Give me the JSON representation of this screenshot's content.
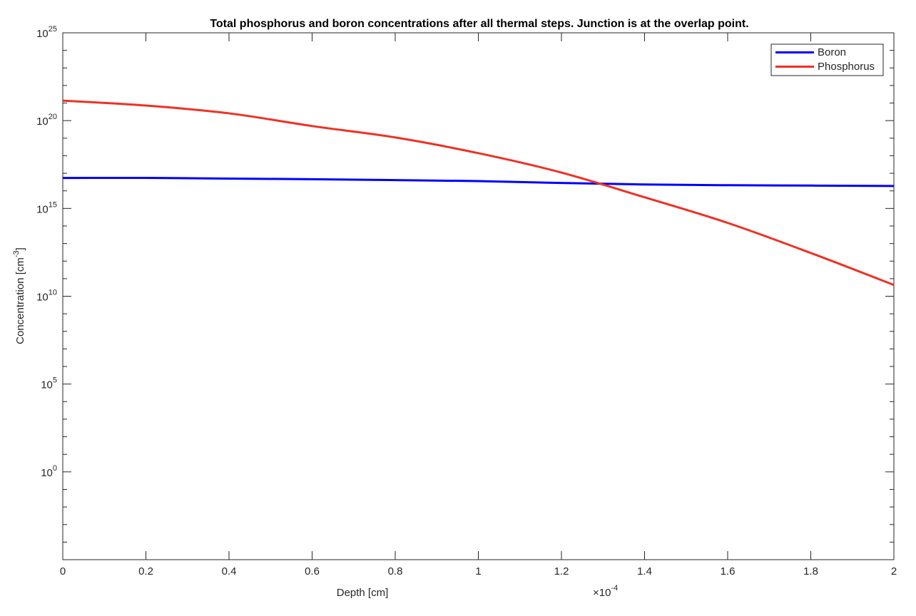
{
  "chart_data": {
    "type": "line",
    "title": "Total phosphorus and boron concentrations after all thermal steps. Junction is at the overlap point.",
    "xlabel": "Depth [cm]",
    "ylabel": "Concentration [cm^-3]",
    "ylabel_main": "Concentration [cm",
    "ylabel_sup": "-3",
    "ylabel_end": "]",
    "x_multiplier": {
      "base": "×10",
      "exp": "-4"
    },
    "xlim": [
      0,
      0.0002
    ],
    "ylim": [
      1e-05,
      1e+25
    ],
    "yscale": "log",
    "grid": false,
    "legend_position": "top-right",
    "x_tick_labels": [
      "0",
      "0.2",
      "0.4",
      "0.6",
      "0.8",
      "1",
      "1.2",
      "1.4",
      "1.6",
      "1.8",
      "2"
    ],
    "y_tick_labels": [
      {
        "base": "10",
        "exp": "0",
        "value": 1
      },
      {
        "base": "10",
        "exp": "5",
        "value": 100000.0
      },
      {
        "base": "10",
        "exp": "10",
        "value": 10000000000.0
      },
      {
        "base": "10",
        "exp": "15",
        "value": 1000000000000000.0
      },
      {
        "base": "10",
        "exp": "20",
        "value": 1e+20
      },
      {
        "base": "10",
        "exp": "25",
        "value": 1e+25
      }
    ],
    "x": [
      0,
      2e-05,
      4e-05,
      6e-05,
      8e-05,
      0.0001,
      0.00012,
      0.00014,
      0.00016,
      0.00018,
      0.0002
    ],
    "series": [
      {
        "name": "Boron",
        "color": "#0000ff",
        "values": [
          5.4e+16,
          5.5e+16,
          5e+16,
          4.6e+16,
          4.1e+16,
          3.6e+16,
          2.8e+16,
          2.3e+16,
          2.1e+16,
          2e+16,
          1.9e+16
        ]
      },
      {
        "name": "Phosphorus",
        "color": "#ee3124",
        "values": [
          1.38e+21,
          7.2e+20,
          2.6e+20,
          4.9e+19,
          1.1e+19,
          1.4e+18,
          1.1e+17,
          4300000000000000.0,
          150000000000000.0,
          2900000000000.0,
          44000000000.0
        ]
      }
    ]
  }
}
